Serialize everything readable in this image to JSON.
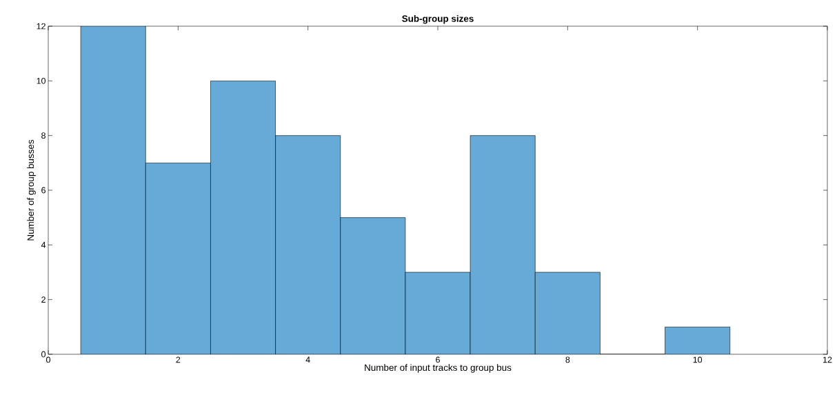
{
  "chart_data": {
    "type": "histogram",
    "title": "Sub-group sizes",
    "xlabel": "Number of input tracks to group bus",
    "ylabel": "Number of group busses",
    "bins": [
      0.5,
      1.5,
      2.5,
      3.5,
      4.5,
      5.5,
      6.5,
      7.5,
      8.5,
      9.5,
      10.5
    ],
    "values": [
      12,
      7,
      10,
      8,
      5,
      3,
      8,
      3,
      0,
      1
    ],
    "color": "#66aad7",
    "xlim": [
      0,
      12
    ],
    "ylim": [
      0,
      12
    ],
    "xticks": [
      0,
      2,
      4,
      6,
      8,
      10,
      12
    ],
    "yticks": [
      0,
      2,
      4,
      6,
      8,
      10,
      12
    ]
  }
}
